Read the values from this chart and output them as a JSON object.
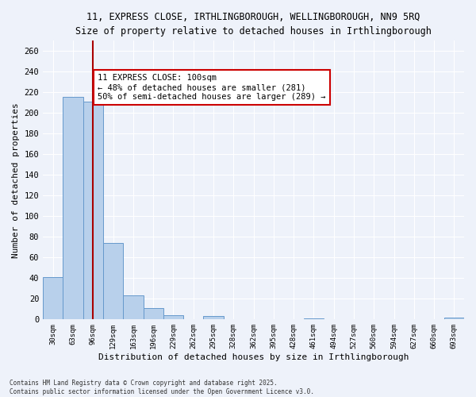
{
  "title_line1": "11, EXPRESS CLOSE, IRTHLINGBOROUGH, WELLINGBOROUGH, NN9 5RQ",
  "title_line2": "Size of property relative to detached houses in Irthlingborough",
  "xlabel": "Distribution of detached houses by size in Irthlingborough",
  "ylabel": "Number of detached properties",
  "categories": [
    "30sqm",
    "63sqm",
    "96sqm",
    "129sqm",
    "163sqm",
    "196sqm",
    "229sqm",
    "262sqm",
    "295sqm",
    "328sqm",
    "362sqm",
    "395sqm",
    "428sqm",
    "461sqm",
    "494sqm",
    "527sqm",
    "560sqm",
    "594sqm",
    "627sqm",
    "660sqm",
    "693sqm"
  ],
  "values": [
    41,
    216,
    211,
    74,
    23,
    11,
    4,
    0,
    3,
    0,
    0,
    0,
    0,
    1,
    0,
    0,
    0,
    0,
    0,
    0,
    2
  ],
  "bar_color": "#b8d0eb",
  "bar_edge_color": "#6699cc",
  "background_color": "#eef2fa",
  "grid_color": "#ffffff",
  "vline_x_index": 2.0,
  "vline_color": "#aa0000",
  "annotation_text": "11 EXPRESS CLOSE: 100sqm\n← 48% of detached houses are smaller (281)\n50% of semi-detached houses are larger (289) →",
  "annotation_box_color": "#cc0000",
  "ylim": [
    0,
    270
  ],
  "yticks": [
    0,
    20,
    40,
    60,
    80,
    100,
    120,
    140,
    160,
    180,
    200,
    220,
    240,
    260
  ],
  "footer_line1": "Contains HM Land Registry data © Crown copyright and database right 2025.",
  "footer_line2": "Contains public sector information licensed under the Open Government Licence v3.0."
}
